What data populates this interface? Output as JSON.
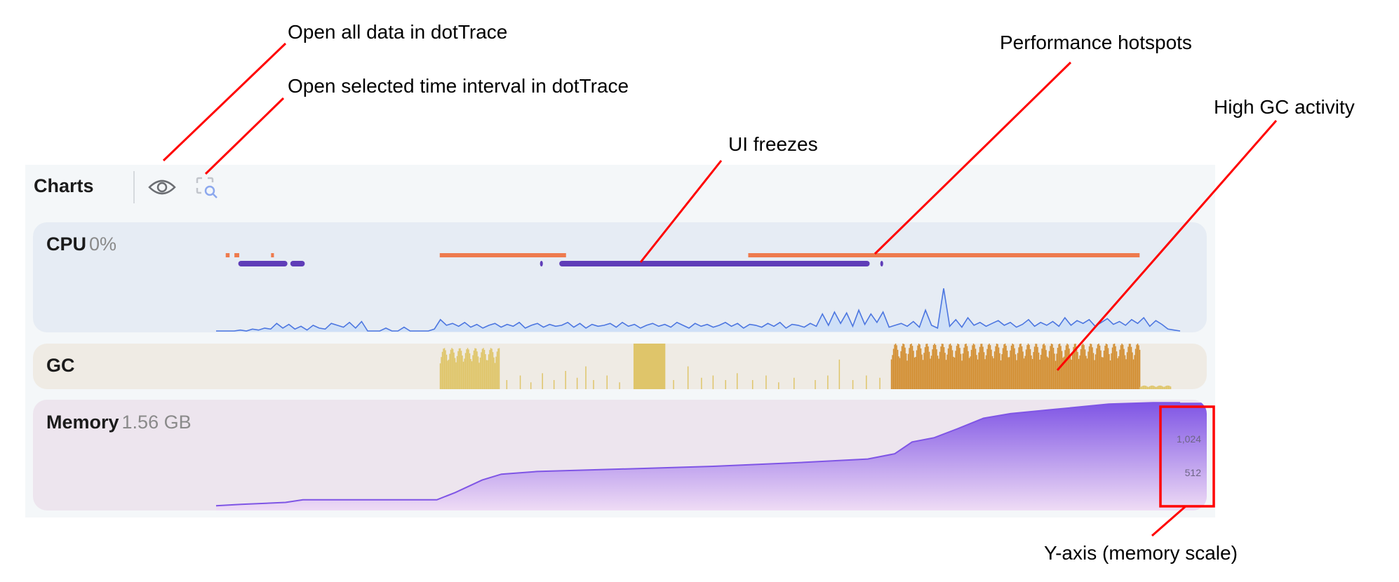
{
  "header": {
    "title": "Charts",
    "icons": [
      "eye-icon",
      "capture-search-icon"
    ]
  },
  "cpu": {
    "label": "CPU",
    "value": "0%",
    "color": "#4c76e0"
  },
  "gc": {
    "label": "GC",
    "colors": {
      "normal": "#dfc56a",
      "high": "#d38f33"
    }
  },
  "memory": {
    "label": "Memory",
    "value": "1.56 GB",
    "color": "#7f55e5",
    "y_ticks": [
      "1,024",
      "512"
    ]
  },
  "annotations": {
    "open_all": "Open all data in dotTrace",
    "open_selected": "Open selected time interval in dotTrace",
    "ui_freezes": "UI freezes",
    "hotspots": "Performance hotspots",
    "high_gc": "High GC activity",
    "y_axis": "Y-axis (memory scale)"
  },
  "chart_data": [
    {
      "type": "line",
      "name": "CPU",
      "x_range_pct": [
        0,
        100
      ],
      "values": [
        0,
        0,
        0,
        0,
        1,
        0,
        2,
        1,
        3,
        2,
        8,
        3,
        7,
        2,
        5,
        1,
        6,
        3,
        2,
        8,
        6,
        4,
        9,
        3,
        10,
        0,
        0,
        0,
        3,
        0,
        0,
        4,
        0,
        0,
        0,
        0,
        2,
        12,
        6,
        8,
        5,
        9,
        4,
        7,
        3,
        6,
        8,
        4,
        7,
        5,
        9,
        3,
        6,
        8,
        4,
        7,
        5,
        6,
        9,
        4,
        8,
        3,
        7,
        5,
        6,
        8,
        4,
        9,
        5,
        7,
        3,
        6,
        8,
        5,
        7,
        4,
        9,
        6,
        3,
        8,
        5,
        7,
        4,
        6,
        9,
        5,
        8,
        3,
        7,
        6,
        4,
        8,
        5,
        9,
        3,
        7,
        6,
        4,
        8,
        5,
        18,
        6,
        20,
        8,
        19,
        5,
        22,
        7,
        18,
        9,
        20,
        4,
        6,
        8,
        5,
        10,
        4,
        22,
        6,
        3,
        45,
        5,
        12,
        4,
        14,
        6,
        9,
        5,
        8,
        11,
        6,
        9,
        4,
        7,
        12,
        5,
        9,
        6,
        10,
        5,
        14,
        6,
        11,
        8,
        12,
        5,
        9,
        13,
        7,
        10,
        6,
        12,
        8,
        14,
        5,
        11,
        7,
        2,
        1,
        0
      ],
      "hotspots_pct": [
        [
          1.0,
          1.4
        ],
        [
          1.9,
          2.4
        ],
        [
          5.7,
          6.0
        ],
        [
          23.2,
          36.3
        ],
        [
          55.2,
          95.8
        ]
      ],
      "ui_freezes_pct": [
        [
          2.3,
          7.4
        ],
        [
          7.7,
          9.2
        ],
        [
          33.6,
          33.9
        ],
        [
          35.6,
          67.8
        ],
        [
          68.9,
          69.2
        ]
      ],
      "colors": {
        "hotspot": "#ee7b4e",
        "freeze": "#5f3db8"
      }
    },
    {
      "type": "bar",
      "name": "GC",
      "segments_pct": [
        {
          "range": [
            23.2,
            29.4
          ],
          "level": 0.75,
          "kind": "dense",
          "severity": "normal"
        },
        {
          "range": [
            43.3,
            46.6
          ],
          "level": 1.0,
          "kind": "solid",
          "severity": "normal"
        },
        {
          "range": [
            70.0,
            95.8
          ],
          "level": 0.85,
          "kind": "dense",
          "severity": "high"
        },
        {
          "range": [
            95.8,
            99.0
          ],
          "level": 0.08,
          "kind": "dense",
          "severity": "normal"
        }
      ],
      "sparse_spikes_pct": [
        [
          30.1,
          0.2
        ],
        [
          31.5,
          0.3
        ],
        [
          32.6,
          0.15
        ],
        [
          33.8,
          0.35
        ],
        [
          35.0,
          0.2
        ],
        [
          36.2,
          0.4
        ],
        [
          37.4,
          0.25
        ],
        [
          38.3,
          0.5
        ],
        [
          39.1,
          0.2
        ],
        [
          40.5,
          0.3
        ],
        [
          41.8,
          0.15
        ],
        [
          47.4,
          0.2
        ],
        [
          48.9,
          0.5
        ],
        [
          50.3,
          0.25
        ],
        [
          51.5,
          0.3
        ],
        [
          52.8,
          0.2
        ],
        [
          54.0,
          0.35
        ],
        [
          55.6,
          0.2
        ],
        [
          57.0,
          0.3
        ],
        [
          58.3,
          0.15
        ],
        [
          59.9,
          0.25
        ],
        [
          62.1,
          0.2
        ],
        [
          63.4,
          0.3
        ],
        [
          64.6,
          0.65
        ],
        [
          66.0,
          0.2
        ],
        [
          67.4,
          0.3
        ],
        [
          68.8,
          0.25
        ]
      ]
    },
    {
      "type": "area",
      "name": "Memory",
      "y_unit": "MB",
      "ylim": [
        0,
        1700
      ],
      "y_ticks": [
        512,
        1024
      ],
      "points": [
        [
          0,
          30
        ],
        [
          2.6,
          50
        ],
        [
          7.2,
          80
        ],
        [
          9.0,
          120
        ],
        [
          22.9,
          120
        ],
        [
          24.8,
          230
        ],
        [
          27.6,
          420
        ],
        [
          29.6,
          510
        ],
        [
          33.3,
          550
        ],
        [
          42.6,
          590
        ],
        [
          51.8,
          630
        ],
        [
          61.1,
          690
        ],
        [
          67.6,
          740
        ],
        [
          70.4,
          820
        ],
        [
          72.2,
          1000
        ],
        [
          74.5,
          1065
        ],
        [
          76.9,
          1200
        ],
        [
          79.6,
          1360
        ],
        [
          82.4,
          1430
        ],
        [
          87.0,
          1495
        ],
        [
          92.6,
          1575
        ],
        [
          97.2,
          1597
        ],
        [
          100,
          1597
        ]
      ]
    }
  ]
}
